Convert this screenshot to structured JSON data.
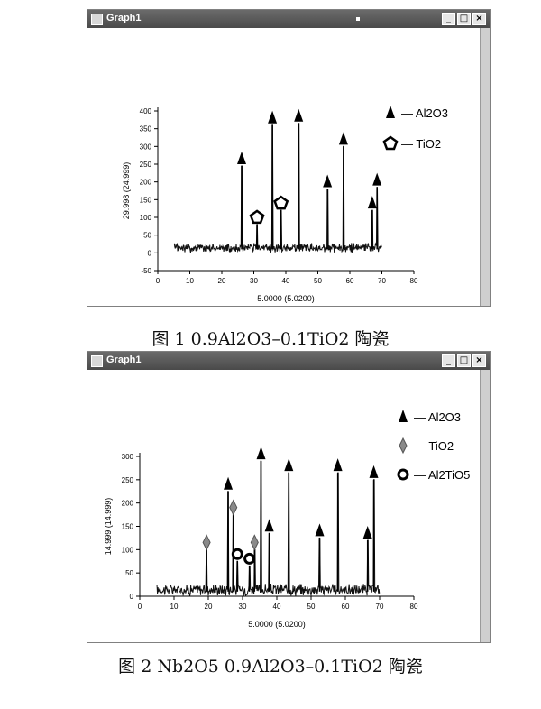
{
  "graph1": {
    "title": "Graph1",
    "y_label": "29.998 (24.999)",
    "x_label": "5.0000 (5.0200)",
    "legend": [
      "— Al2O3",
      "— TiO2"
    ],
    "caption": "图 1 0.9Al2O3–0.1TiO2 陶瓷",
    "chart_data": {
      "type": "line",
      "xlim": [
        0,
        80
      ],
      "ylim": [
        -50,
        400
      ],
      "xticks": [
        0,
        10,
        20,
        30,
        40,
        50,
        60,
        70,
        80
      ],
      "yticks": [
        -50,
        0,
        50,
        100,
        150,
        200,
        250,
        300,
        350,
        400
      ],
      "baseline": 10,
      "peaks": [
        {
          "x": 26.2,
          "y": 245,
          "phase": "Al2O3"
        },
        {
          "x": 31.0,
          "y": 80,
          "phase": "TiO2"
        },
        {
          "x": 35.8,
          "y": 360,
          "phase": "Al2O3"
        },
        {
          "x": 38.5,
          "y": 120,
          "phase": "TiO2"
        },
        {
          "x": 44.0,
          "y": 365,
          "phase": "Al2O3"
        },
        {
          "x": 53.0,
          "y": 180,
          "phase": "Al2O3"
        },
        {
          "x": 58.0,
          "y": 300,
          "phase": "Al2O3"
        },
        {
          "x": 67.0,
          "y": 120,
          "phase": "Al2O3"
        },
        {
          "x": 68.5,
          "y": 185,
          "phase": "Al2O3"
        }
      ]
    }
  },
  "graph2": {
    "title": "Graph1",
    "y_label": "14.999 (14.999)",
    "x_label": "5.0000 (5.0200)",
    "legend": [
      "— Al2O3",
      "— TiO2",
      "— Al2TiO5"
    ],
    "caption": "图 2 Nb2O5 0.9Al2O3–0.1TiO2 陶瓷",
    "chart_data": {
      "type": "line",
      "xlim": [
        0,
        80
      ],
      "ylim": [
        0,
        300
      ],
      "xticks": [
        0,
        10,
        20,
        30,
        40,
        50,
        60,
        70,
        80
      ],
      "yticks": [
        0,
        50,
        100,
        150,
        200,
        250,
        300
      ],
      "baseline": 10,
      "peaks": [
        {
          "x": 19.5,
          "y": 100,
          "phase": "TiO2"
        },
        {
          "x": 25.8,
          "y": 225,
          "phase": "Al2O3"
        },
        {
          "x": 27.3,
          "y": 175,
          "phase": "TiO2"
        },
        {
          "x": 28.5,
          "y": 75,
          "phase": "Al2TiO5"
        },
        {
          "x": 32.0,
          "y": 65,
          "phase": "Al2TiO5"
        },
        {
          "x": 33.5,
          "y": 100,
          "phase": "TiO2"
        },
        {
          "x": 35.4,
          "y": 290,
          "phase": "Al2O3"
        },
        {
          "x": 37.8,
          "y": 135,
          "phase": "Al2O3"
        },
        {
          "x": 43.5,
          "y": 265,
          "phase": "Al2O3"
        },
        {
          "x": 52.5,
          "y": 125,
          "phase": "Al2O3"
        },
        {
          "x": 57.8,
          "y": 265,
          "phase": "Al2O3"
        },
        {
          "x": 66.5,
          "y": 120,
          "phase": "Al2O3"
        },
        {
          "x": 68.3,
          "y": 250,
          "phase": "Al2O3"
        }
      ]
    }
  },
  "colors": {
    "trace": "#111111",
    "titlebar": "#555555",
    "tio2_marker_fill_graph2": "#8a8a8a"
  }
}
